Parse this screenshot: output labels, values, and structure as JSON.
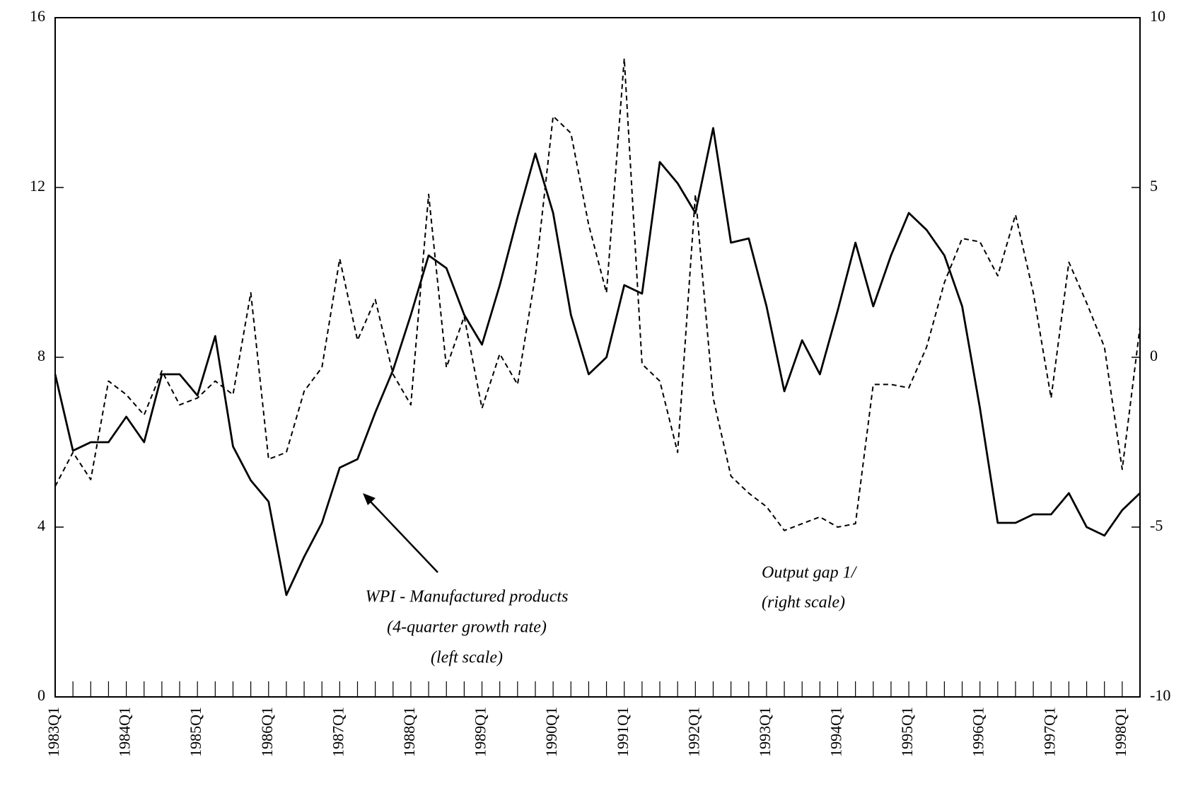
{
  "chart_data": {
    "type": "line",
    "categories": [
      "1983Q1",
      null,
      null,
      null,
      "1984Q1",
      null,
      null,
      null,
      "1985Q1",
      null,
      null,
      null,
      "1986Q1",
      null,
      null,
      null,
      "1987Q1",
      null,
      null,
      null,
      "1988Q1",
      null,
      null,
      null,
      "1989Q1",
      null,
      null,
      null,
      "1990Q1",
      null,
      null,
      null,
      "1991Q1",
      null,
      null,
      null,
      "1992Q1",
      null,
      null,
      null,
      "1993Q1",
      null,
      null,
      null,
      "1994Q1",
      null,
      null,
      null,
      "1995Q1",
      null,
      null,
      null,
      "1996Q1",
      null,
      null,
      null,
      "1997Q1",
      null,
      null,
      null,
      "1998Q1",
      null
    ],
    "series": [
      {
        "name": "WPI - Manufactured products",
        "color": "#000000",
        "dash": false,
        "values": [
          7.6,
          5.8,
          6.0,
          6.0,
          6.6,
          6.0,
          7.6,
          7.6,
          7.1,
          8.5,
          5.9,
          5.1,
          4.6,
          2.4,
          3.3,
          4.1,
          5.4,
          5.6,
          6.7,
          7.7,
          9.0,
          10.4,
          10.1,
          9.0,
          8.3,
          9.7,
          11.3,
          12.8,
          11.4,
          9.0,
          7.6,
          8.0,
          9.7,
          9.5,
          12.6,
          12.1,
          11.4,
          13.4,
          10.7,
          10.8,
          9.2,
          7.2,
          8.4,
          7.6,
          9.1,
          10.7,
          9.2,
          10.4,
          11.4,
          11.0,
          10.4,
          9.2,
          6.8,
          4.1,
          4.1,
          4.3,
          4.3,
          4.8,
          4.0,
          3.8,
          4.4,
          4.8
        ]
      },
      {
        "name": "Output gap 1/",
        "color": "#000000",
        "dash": true,
        "axis": "y2",
        "values": [
          -3.8,
          -2.8,
          -3.6,
          -0.7,
          -1.1,
          -1.7,
          -0.4,
          -1.4,
          -1.2,
          -0.7,
          -1.1,
          1.9,
          -3.0,
          -2.8,
          -1.0,
          -0.3,
          2.9,
          0.5,
          1.7,
          -0.5,
          -1.4,
          4.8,
          -0.3,
          1.2,
          -1.5,
          0.1,
          -0.8,
          2.4,
          7.1,
          6.6,
          3.9,
          1.9,
          8.8,
          -0.2,
          -0.7,
          -2.8,
          4.8,
          -1.2,
          -3.5,
          -4.0,
          -4.4,
          -5.1,
          -4.9,
          -4.7,
          -5.0,
          -4.9,
          -0.8,
          -0.8,
          -0.9,
          0.3,
          2.2,
          3.5,
          3.4,
          2.4,
          4.2,
          1.9,
          -1.2,
          2.8,
          1.6,
          0.3,
          -3.3,
          0.9
        ]
      }
    ],
    "annotations": [
      "(4-quarter growth rate)",
      "(left scale)",
      "(right scale)"
    ],
    "ylim": [
      0,
      16
    ],
    "yticks": [
      0,
      4,
      8,
      12,
      16
    ],
    "y2lim": [
      -10,
      10
    ],
    "y2ticks": [
      -10,
      -5,
      0,
      5,
      10
    ]
  }
}
